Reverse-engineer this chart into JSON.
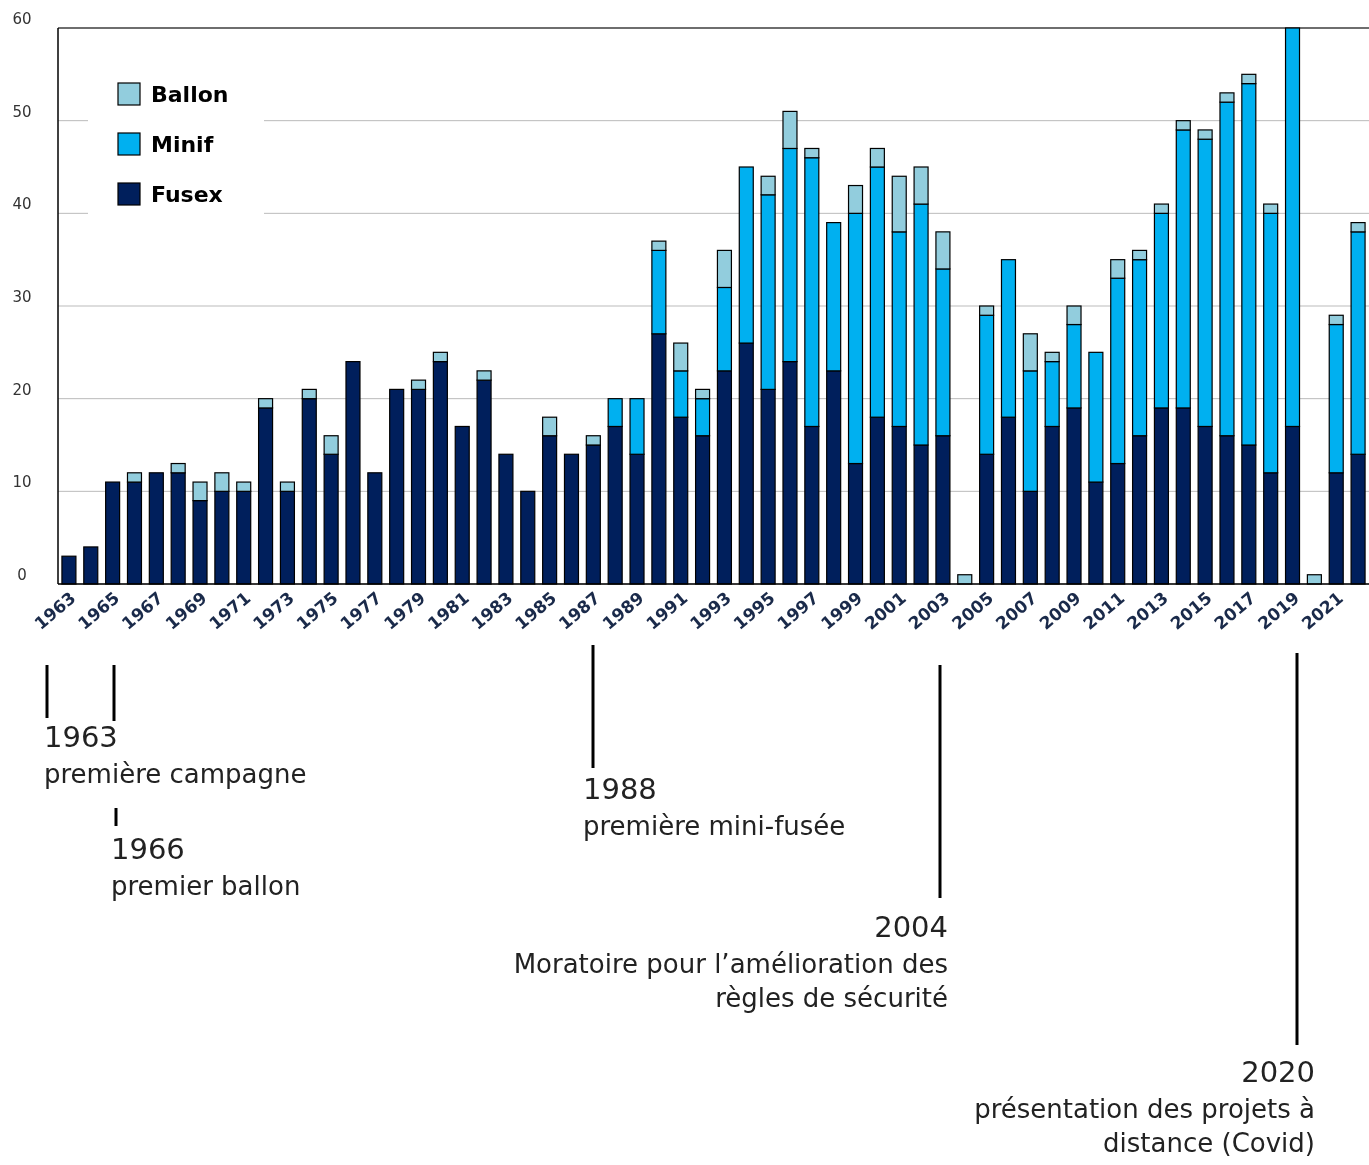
{
  "chart_data": {
    "type": "bar",
    "stacked": true,
    "categories": [
      "1963",
      null,
      "1965",
      null,
      "1967",
      null,
      "1969",
      null,
      "1971",
      null,
      "1973",
      null,
      "1975",
      null,
      "1977",
      null,
      "1979",
      null,
      "1981",
      null,
      "1983",
      null,
      "1985",
      null,
      "1987",
      null,
      "1989",
      null,
      "1991",
      null,
      "1993",
      null,
      "1995",
      null,
      "1997",
      null,
      "1999",
      null,
      "2001",
      null,
      "2003",
      null,
      "2005",
      null,
      "2007",
      null,
      "2009",
      null,
      "2011",
      null,
      "2013",
      null,
      "2015",
      null,
      "2017",
      null,
      "2019",
      null,
      "2021",
      null
    ],
    "series": [
      {
        "name": "Fusex",
        "color": "#001f5c",
        "values": [
          3,
          4,
          11,
          11,
          12,
          12,
          9,
          10,
          10,
          19,
          10,
          20,
          14,
          24,
          12,
          21,
          21,
          24,
          17,
          22,
          14,
          10,
          16,
          14,
          15,
          17,
          14,
          27,
          18,
          16,
          23,
          26,
          21,
          24,
          17,
          23,
          13,
          18,
          17,
          15,
          16,
          0,
          14,
          18,
          10,
          17,
          19,
          11,
          13,
          16,
          19,
          19,
          17,
          16,
          15,
          12,
          17,
          0,
          12,
          14
        ]
      },
      {
        "name": "Minif",
        "color": "#00b0f0",
        "values": [
          0,
          0,
          0,
          0,
          0,
          0,
          0,
          0,
          0,
          0,
          0,
          0,
          0,
          0,
          0,
          0,
          0,
          0,
          0,
          0,
          0,
          0,
          0,
          0,
          0,
          3,
          6,
          9,
          5,
          4,
          9,
          19,
          21,
          23,
          29,
          16,
          27,
          27,
          21,
          26,
          18,
          0,
          15,
          17,
          13,
          7,
          9,
          14,
          20,
          19,
          21,
          30,
          31,
          36,
          39,
          28,
          43,
          0,
          16,
          24
        ]
      },
      {
        "name": "Ballon",
        "color": "#92cddd",
        "values": [
          0,
          0,
          0,
          1,
          0,
          1,
          2,
          2,
          1,
          1,
          1,
          1,
          2,
          0,
          0,
          0,
          1,
          1,
          0,
          1,
          0,
          0,
          2,
          0,
          1,
          0,
          0,
          1,
          3,
          1,
          4,
          0,
          2,
          4,
          1,
          0,
          3,
          2,
          6,
          4,
          4,
          1,
          1,
          0,
          4,
          1,
          2,
          0,
          2,
          1,
          1,
          1,
          1,
          1,
          1,
          1,
          0,
          1,
          1,
          1
        ]
      }
    ],
    "ylim": [
      0,
      60
    ],
    "yticks": [
      0,
      10,
      20,
      30,
      40,
      50,
      60
    ],
    "grid": "y",
    "legend": "top left",
    "annotations": [
      "1963\npremière campagne",
      "1966\npremier ballon",
      "1988\npremière mini-fusée",
      "2004\nMoratoire pour l’amélioration des\nrègles de sécurité",
      "2020\nprésentation des projets à\ndistance (Covid)"
    ]
  }
}
